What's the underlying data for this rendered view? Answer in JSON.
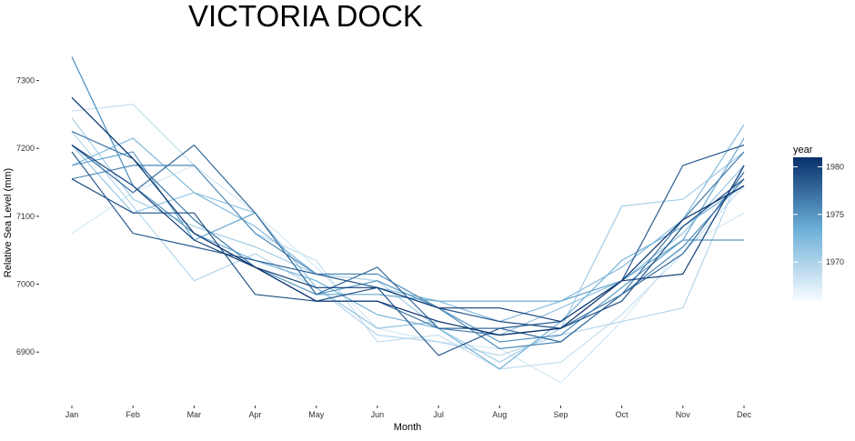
{
  "chart_data": {
    "type": "line",
    "title": "VICTORIA DOCK",
    "xlabel": "Month",
    "ylabel": "Relative Sea Level (mm)",
    "categories": [
      "Jan",
      "Feb",
      "Mar",
      "Apr",
      "May",
      "Jun",
      "Jul",
      "Aug",
      "Sep",
      "Oct",
      "Nov",
      "Dec"
    ],
    "ylim": [
      6840,
      7345
    ],
    "yticks": [
      6900,
      7000,
      7100,
      7200,
      7300
    ],
    "ytick_labels": [
      "6900",
      "7000",
      "7100",
      "7200",
      "7300"
    ],
    "grid": false,
    "legend": {
      "title": "year",
      "placement": "right",
      "type": "colorbar",
      "range": [
        1966,
        1981
      ],
      "ticks": [
        1970,
        1975,
        1980
      ],
      "tick_labels": [
        "1970",
        "1975",
        "1980"
      ],
      "color_low": "#f7fbff",
      "color_high": "#08306b"
    },
    "series": [
      {
        "year": 1966,
        "values": [
          7075,
          7135,
          7175,
          7105,
          7025,
          6935,
          6915,
          6905,
          6855,
          6945,
          7055,
          7105
        ]
      },
      {
        "year": 1967,
        "values": [
          7255,
          7265,
          7175,
          7075,
          7035,
          6915,
          6925,
          6875,
          6885,
          6955,
          7045,
          7145
        ]
      },
      {
        "year": 1968,
        "values": [
          7225,
          7115,
          7005,
          7045,
          6995,
          6925,
          6915,
          6895,
          6925,
          6945,
          6965,
          7175
        ]
      },
      {
        "year": 1969,
        "values": [
          7245,
          7125,
          7085,
          7055,
          7015,
          7005,
          6935,
          6885,
          6935,
          7115,
          7125,
          7195
        ]
      },
      {
        "year": 1970,
        "values": [
          7205,
          7105,
          7135,
          7105,
          6995,
          6935,
          6945,
          6925,
          6965,
          7005,
          7075,
          7175
        ]
      },
      {
        "year": 1971,
        "values": [
          7175,
          7215,
          7135,
          7085,
          7015,
          6995,
          6975,
          6945,
          6975,
          7025,
          7095,
          7235
        ]
      },
      {
        "year": 1972,
        "values": [
          7335,
          7145,
          7075,
          7035,
          7005,
          6955,
          6935,
          6875,
          6945,
          7035,
          7085,
          7145
        ]
      },
      {
        "year": 1973,
        "values": [
          7175,
          7195,
          7065,
          7105,
          6985,
          6985,
          6975,
          6975,
          6975,
          7005,
          7065,
          7215
        ]
      },
      {
        "year": 1974,
        "values": [
          7335,
          7145,
          7075,
          7025,
          6985,
          7005,
          6965,
          6915,
          6925,
          6995,
          7065,
          7065
        ]
      },
      {
        "year": 1975,
        "values": [
          7155,
          7175,
          7175,
          7075,
          7015,
          7015,
          6965,
          6905,
          6915,
          6985,
          7055,
          7155
        ]
      },
      {
        "year": 1976,
        "values": [
          7225,
          7185,
          7095,
          7025,
          6975,
          6975,
          6935,
          6925,
          6935,
          6985,
          7095,
          7195
        ]
      },
      {
        "year": 1977,
        "values": [
          7205,
          7135,
          7205,
          7105,
          6985,
          7025,
          6935,
          6935,
          6915,
          6985,
          7045,
          7165
        ]
      },
      {
        "year": 1978,
        "values": [
          7195,
          7075,
          7055,
          7035,
          7015,
          6995,
          6895,
          6935,
          6945,
          7005,
          7175,
          7205
        ]
      },
      {
        "year": 1979,
        "values": [
          7155,
          7105,
          7105,
          6985,
          6975,
          6995,
          6965,
          6945,
          6935,
          6975,
          7085,
          7155
        ]
      },
      {
        "year": 1980,
        "values": [
          7205,
          7145,
          7065,
          7025,
          6995,
          6995,
          6965,
          6965,
          6945,
          7005,
          7015,
          7175
        ]
      },
      {
        "year": 1981,
        "values": [
          7275,
          7185,
          7075,
          7025,
          6975,
          6975,
          6945,
          6925,
          6935,
          7005,
          7095,
          7145
        ]
      }
    ]
  }
}
